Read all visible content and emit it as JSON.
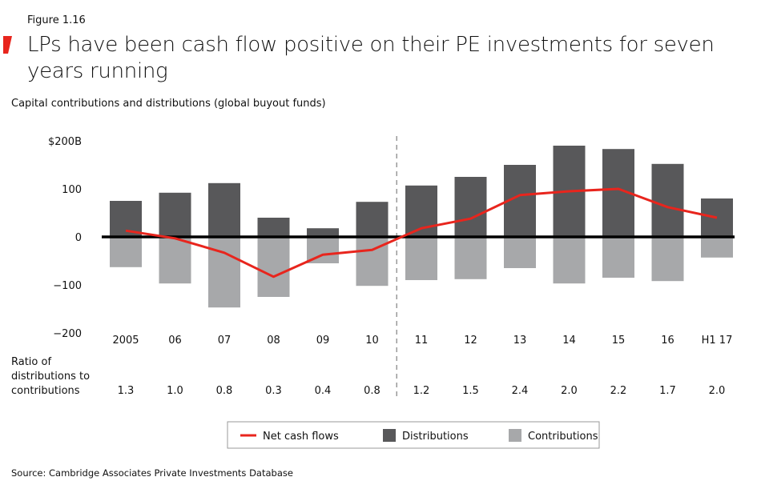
{
  "figure_label": "Figure 1.16",
  "title": "LPs have been cash flow positive on their PE investments for seven years running",
  "subtitle": "Capital contributions and distributions (global buyout funds)",
  "source": "Source: Cambridge Associates Private Investments Database",
  "colors": {
    "accent": "#e8251d",
    "distributions": "#58585a",
    "contributions": "#a7a8aa",
    "net": "#e8251d"
  },
  "chart_data": {
    "type": "bar",
    "ylim": [
      -200,
      200
    ],
    "y_ticks": [
      {
        "v": 200,
        "label": "$200B"
      },
      {
        "v": 100,
        "label": "100"
      },
      {
        "v": 0,
        "label": "0"
      },
      {
        "v": -100,
        "label": "−100"
      },
      {
        "v": -200,
        "label": "−200"
      }
    ],
    "categories": [
      "2005",
      "06",
      "07",
      "08",
      "09",
      "10",
      "11",
      "12",
      "13",
      "14",
      "15",
      "16",
      "H1 17"
    ],
    "series": [
      {
        "name": "Distributions",
        "type": "bar",
        "values": [
          75,
          92,
          112,
          40,
          18,
          73,
          107,
          125,
          150,
          190,
          183,
          152,
          80
        ]
      },
      {
        "name": "Contributions",
        "type": "bar",
        "values": [
          -63,
          -97,
          -147,
          -125,
          -55,
          -102,
          -90,
          -88,
          -65,
          -97,
          -85,
          -92,
          -43
        ]
      },
      {
        "name": "Net cash flows",
        "type": "line",
        "values": [
          13,
          -3,
          -33,
          -83,
          -37,
          -27,
          18,
          38,
          87,
          95,
          100,
          62,
          40
        ]
      }
    ],
    "divider_between": [
      "10",
      "11"
    ],
    "ratio_label_lines": [
      "Ratio of",
      "distributions to",
      "contributions"
    ],
    "ratios": [
      "1.3",
      "1.0",
      "0.8",
      "0.3",
      "0.4",
      "0.8",
      "1.2",
      "1.5",
      "2.4",
      "2.0",
      "2.2",
      "1.7",
      "2.0"
    ],
    "legend": [
      "Net cash flows",
      "Distributions",
      "Contributions"
    ],
    "legend_position": "bottom",
    "grid": false
  }
}
